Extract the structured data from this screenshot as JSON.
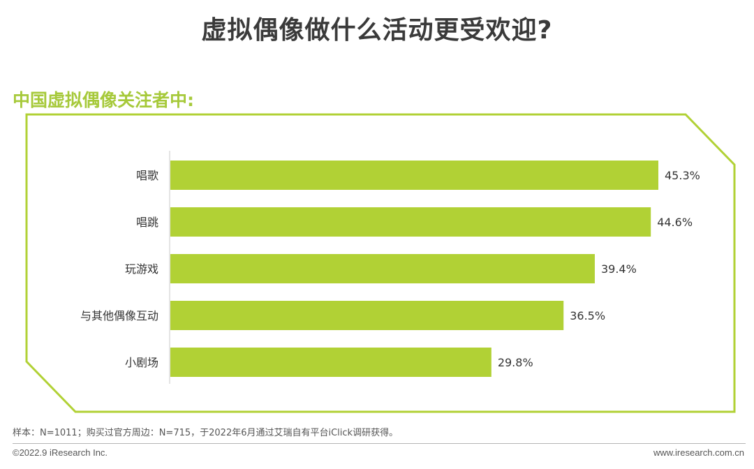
{
  "header": {
    "title": "虚拟偶像做什么活动更受欢迎?",
    "subtitle": "中国虚拟偶像关注者中:"
  },
  "chart_data": {
    "type": "bar",
    "orientation": "horizontal",
    "categories": [
      "唱歌",
      "唱跳",
      "玩游戏",
      "与其他偶像互动",
      "小剧场"
    ],
    "values": [
      45.3,
      44.6,
      39.4,
      36.5,
      29.8
    ],
    "value_labels": [
      "45.3%",
      "44.6%",
      "39.4%",
      "36.5%",
      "29.8%"
    ],
    "unit": "%",
    "bar_color": "#b1d135",
    "grid": false,
    "legend": "none"
  },
  "footer": {
    "note": "样本：N=1011；购买过官方周边：N=715，于2022年6月通过艾瑞自有平台iClick调研获得。",
    "copyright": "©2022.9 iResearch Inc.",
    "website": "www.iresearch.com.cn"
  },
  "colors": {
    "accent": "#a6c93a",
    "bar": "#b1d135",
    "title": "#3a3a3a"
  }
}
